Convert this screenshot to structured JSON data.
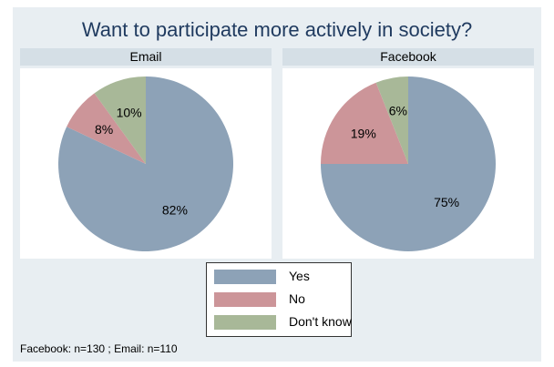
{
  "chart_data": [
    {
      "type": "pie",
      "title": "Want to participate more actively in society?",
      "panel": "Email",
      "categories": [
        "Yes",
        "No",
        "Don't know"
      ],
      "values": [
        82,
        8,
        10
      ],
      "labels": [
        "82%",
        "8%",
        "10%"
      ],
      "colors": [
        "#8da2b7",
        "#cc9599",
        "#a8b898"
      ]
    },
    {
      "type": "pie",
      "title": "Want to participate more actively in society?",
      "panel": "Facebook",
      "categories": [
        "Yes",
        "No",
        "Don't know"
      ],
      "values": [
        75,
        19,
        6
      ],
      "labels": [
        "75%",
        "19%",
        "6%"
      ],
      "colors": [
        "#8da2b7",
        "#cc9599",
        "#a8b898"
      ]
    }
  ],
  "title": "Want to participate more actively in society?",
  "panels": [
    "Email",
    "Facebook"
  ],
  "legend": {
    "placement": "bottom-center",
    "items": [
      {
        "label": "Yes",
        "color": "#8da2b7"
      },
      {
        "label": "No",
        "color": "#cc9599"
      },
      {
        "label": "Don't know",
        "color": "#a8b898"
      }
    ]
  },
  "note": "Facebook: n=130 ; Email: n=110"
}
